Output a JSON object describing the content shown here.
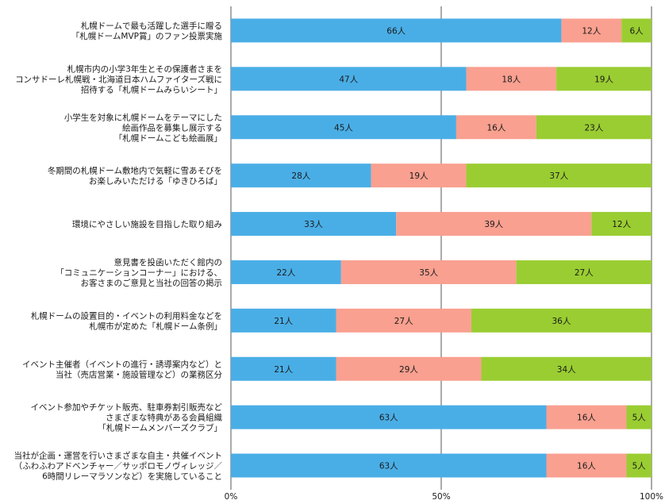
{
  "chart_data": {
    "type": "bar",
    "orientation": "horizontal",
    "stacked": "percent",
    "unit_suffix": "人",
    "colors": [
      "#4aaee6",
      "#f9a090",
      "#9acd32"
    ],
    "categories": [
      [
        "札幌ドームで最も活躍した選手に贈る",
        "「札幌ドームMVP賞」のファン投票実施"
      ],
      [
        "札幌市内の小学3年生とその保護者さまを",
        "コンサドーレ札幌戦・北海道日本ハムファイターズ戦に",
        "招待する「札幌ドームみらいシート」"
      ],
      [
        "小学生を対象に札幌ドームをテーマにした",
        "絵画作品を募集し展示する",
        "「札幌ドームこども絵画展」"
      ],
      [
        "冬期間の札幌ドーム敷地内で気軽に雪あそびを",
        "お楽しみいただける「ゆきひろば」"
      ],
      [
        "環境にやさしい施設を目指した取り組み"
      ],
      [
        "意見書を投函いただく館内の",
        "「コミュニケーションコーナー」における、",
        "お客さまのご意見と当社の回答の掲示"
      ],
      [
        "札幌ドームの設置目的・イベントの利用料金などを",
        "札幌市が定めた「札幌ドーム条例」"
      ],
      [
        "イベント主催者（イベントの進行・誘導案内など）と",
        "当社（売店営業・施設管理など）の業務区分"
      ],
      [
        "イベント参加やチケット販売、駐車券割引販売など",
        "さまざまな特典がある会員組織",
        "「札幌ドームメンバーズクラブ」"
      ],
      [
        "当社が企画・運営を行いさまざまな自主・共催イベント",
        "（ふわふわアドベンチャー／サッポロモノヴィレッジ／",
        "6時間リレーマラソンなど）を実施していること"
      ]
    ],
    "series": [
      {
        "values": [
          66,
          47,
          45,
          28,
          33,
          22,
          21,
          21,
          63,
          63
        ]
      },
      {
        "values": [
          12,
          18,
          16,
          19,
          39,
          35,
          27,
          29,
          16,
          16
        ]
      },
      {
        "values": [
          6,
          19,
          23,
          37,
          12,
          27,
          36,
          34,
          5,
          5
        ]
      }
    ],
    "x_ticks": [
      "0%",
      "50%",
      "100%"
    ],
    "xlim": [
      0,
      100
    ],
    "grid": "vertical at 50%"
  }
}
